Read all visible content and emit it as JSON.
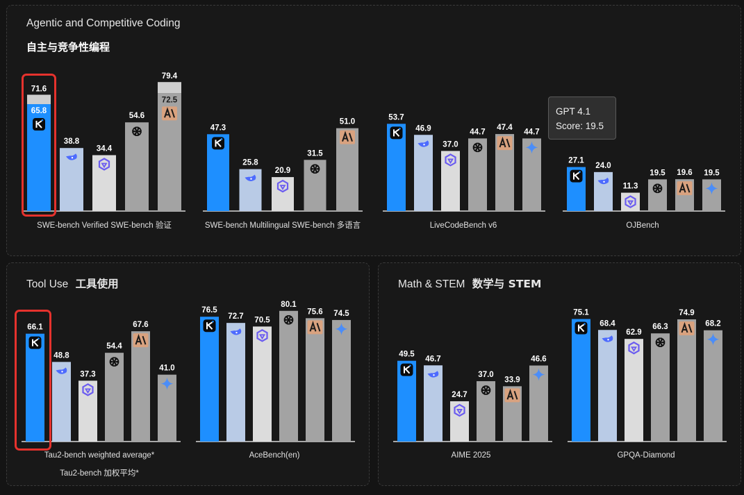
{
  "panels": {
    "coding": {
      "title": "Agentic and Competitive Coding",
      "subtitle": "自主与竞争性编程"
    },
    "tool": {
      "title": "Tool Use",
      "title_cn": "工具使用"
    },
    "math": {
      "title": "Math & STEM",
      "title_cn": "数学与 STEM"
    }
  },
  "tooltip": {
    "line1": "GPT 4.1",
    "line2": "Score: 19.5"
  },
  "colors": {
    "kimi": "#1e8fff",
    "deepseek": "#b9cbe6",
    "qwen": "#dcdcdc",
    "openai": "#a3a3a3",
    "anthropic": "#a3a3a3",
    "gemini": "#a3a3a3",
    "highlight": "#e5322d",
    "background": "#141414"
  },
  "models": [
    {
      "key": "kimi",
      "icon": "kimi-k-icon"
    },
    {
      "key": "deepseek",
      "icon": "deepseek-whale-icon"
    },
    {
      "key": "qwen",
      "icon": "qwen-star-icon"
    },
    {
      "key": "openai",
      "icon": "openai-knot-icon"
    },
    {
      "key": "anthropic",
      "icon": "anthropic-ai-icon"
    },
    {
      "key": "gemini",
      "icon": "gemini-sparkle-icon"
    }
  ],
  "chart_data": [
    {
      "type": "bar",
      "panel": "coding",
      "category_label": "SWE-bench Verified  SWE-bench 验证",
      "series": [
        {
          "model": "kimi",
          "value": 65.8,
          "extra_value": 71.6
        },
        {
          "model": "deepseek",
          "value": 38.8
        },
        {
          "model": "qwen",
          "value": 34.4
        },
        {
          "model": "openai",
          "value": 54.6
        },
        {
          "model": "anthropic",
          "value": 72.5,
          "extra_value": 79.4
        }
      ]
    },
    {
      "type": "bar",
      "panel": "coding",
      "category_label": "SWE-bench Multilingual  SWE-bench 多语言",
      "series": [
        {
          "model": "kimi",
          "value": 47.3
        },
        {
          "model": "deepseek",
          "value": 25.8
        },
        {
          "model": "qwen",
          "value": 20.9
        },
        {
          "model": "openai",
          "value": 31.5
        },
        {
          "model": "anthropic",
          "value": 51.0
        }
      ]
    },
    {
      "type": "bar",
      "panel": "coding",
      "category_label": "LiveCodeBench v6",
      "series": [
        {
          "model": "kimi",
          "value": 53.7
        },
        {
          "model": "deepseek",
          "value": 46.9
        },
        {
          "model": "qwen",
          "value": 37.0
        },
        {
          "model": "openai",
          "value": 44.7
        },
        {
          "model": "anthropic",
          "value": 47.4
        },
        {
          "model": "gemini",
          "value": 44.7
        }
      ]
    },
    {
      "type": "bar",
      "panel": "coding",
      "category_label": "OJBench",
      "series": [
        {
          "model": "kimi",
          "value": 27.1
        },
        {
          "model": "deepseek",
          "value": 24.0
        },
        {
          "model": "qwen",
          "value": 11.3
        },
        {
          "model": "openai",
          "value": 19.5
        },
        {
          "model": "anthropic",
          "value": 19.6
        },
        {
          "model": "gemini",
          "value": 19.5
        }
      ]
    },
    {
      "type": "bar",
      "panel": "tool",
      "category_label": "Tau2-bench weighted average*",
      "category_label_2": "Tau2-bench 加权平均*",
      "series": [
        {
          "model": "kimi",
          "value": 66.1
        },
        {
          "model": "deepseek",
          "value": 48.8
        },
        {
          "model": "qwen",
          "value": 37.3
        },
        {
          "model": "openai",
          "value": 54.4
        },
        {
          "model": "anthropic",
          "value": 67.6
        },
        {
          "model": "gemini",
          "value": 41.0
        }
      ]
    },
    {
      "type": "bar",
      "panel": "tool",
      "category_label": "AceBench(en)",
      "series": [
        {
          "model": "kimi",
          "value": 76.5
        },
        {
          "model": "deepseek",
          "value": 72.7
        },
        {
          "model": "qwen",
          "value": 70.5
        },
        {
          "model": "openai",
          "value": 80.1
        },
        {
          "model": "anthropic",
          "value": 75.6
        },
        {
          "model": "gemini",
          "value": 74.5
        }
      ]
    },
    {
      "type": "bar",
      "panel": "math",
      "category_label": "AIME 2025",
      "series": [
        {
          "model": "kimi",
          "value": 49.5
        },
        {
          "model": "deepseek",
          "value": 46.7
        },
        {
          "model": "qwen",
          "value": 24.7
        },
        {
          "model": "openai",
          "value": 37.0
        },
        {
          "model": "anthropic",
          "value": 33.9
        },
        {
          "model": "gemini",
          "value": 46.6
        }
      ]
    },
    {
      "type": "bar",
      "panel": "math",
      "category_label": "GPQA-Diamond",
      "series": [
        {
          "model": "kimi",
          "value": 75.1
        },
        {
          "model": "deepseek",
          "value": 68.4
        },
        {
          "model": "qwen",
          "value": 62.9
        },
        {
          "model": "openai",
          "value": 66.3
        },
        {
          "model": "anthropic",
          "value": 74.9
        },
        {
          "model": "gemini",
          "value": 68.2
        }
      ]
    }
  ]
}
